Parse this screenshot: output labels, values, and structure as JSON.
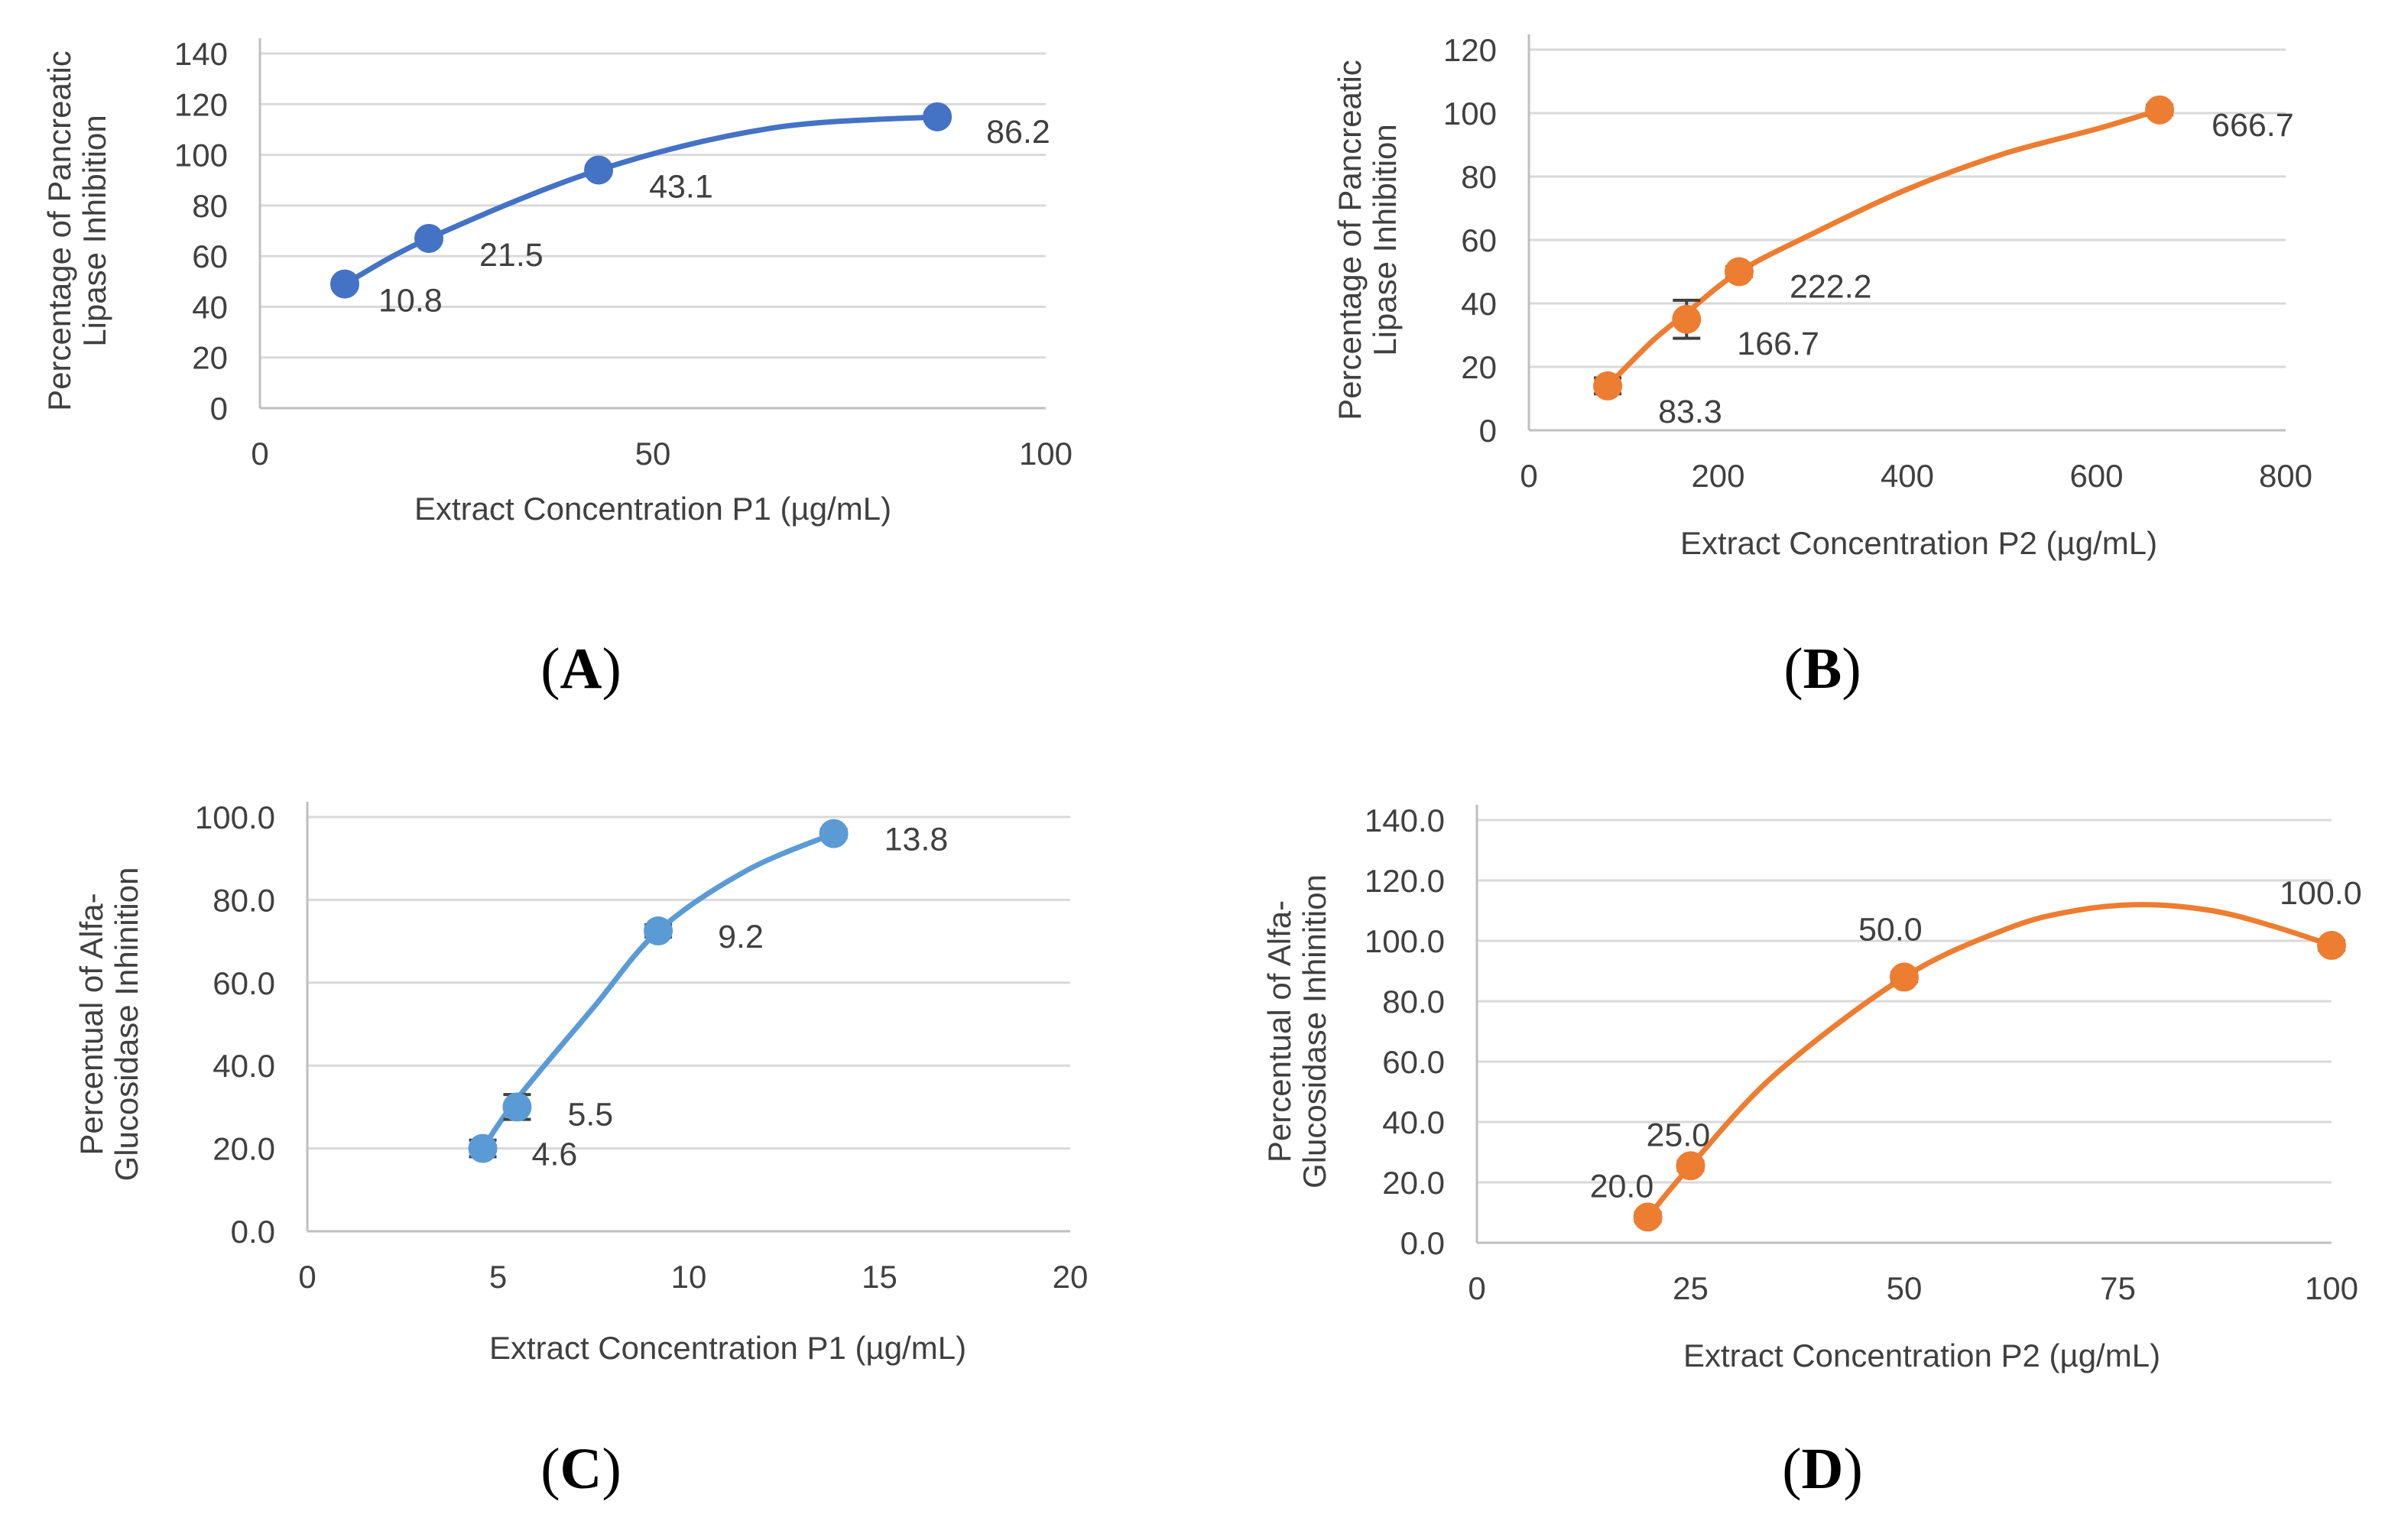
{
  "chart_data": [
    {
      "id": "A",
      "type": "scatter",
      "panel_label": "A",
      "xlabel": "Extract Concentration P1 (µg/mL)",
      "ylabel": [
        "Percentage of Pancreatic",
        "Lipase Inhibition"
      ],
      "xlim": [
        0,
        100
      ],
      "ylim": [
        0,
        140
      ],
      "xticks": [
        "0",
        "50",
        "100"
      ],
      "yticks": [
        "0",
        "20",
        "40",
        "60",
        "80",
        "100",
        "120",
        "140"
      ],
      "grid": true,
      "color": "#4472C4",
      "series": [
        {
          "name": "P1",
          "x": [
            10.8,
            21.5,
            43.1,
            86.2
          ],
          "y": [
            49,
            67,
            94,
            115
          ],
          "labels": [
            "10.8",
            "21.5",
            "43.1",
            "86.2"
          ],
          "error": [
            1.5,
            1.5,
            1.5,
            1.5
          ]
        }
      ],
      "trendline": {
        "type": "polynomial",
        "x": [
          10.8,
          21.5,
          43.1,
          65,
          86.2
        ],
        "y": [
          49,
          67,
          94,
          110.5,
          115
        ]
      }
    },
    {
      "id": "B",
      "type": "scatter",
      "panel_label": "B",
      "xlabel": "Extract Concentration P2 (µg/mL)",
      "ylabel": [
        "Percentage of Pancreatic",
        "Lipase Inhibition"
      ],
      "xlim": [
        0,
        800
      ],
      "ylim": [
        0,
        120
      ],
      "xticks": [
        "0",
        "200",
        "400",
        "600",
        "800"
      ],
      "yticks": [
        "0",
        "20",
        "40",
        "60",
        "80",
        "100",
        "120"
      ],
      "grid": true,
      "color": "#ED7D31",
      "series": [
        {
          "name": "P2",
          "x": [
            83.3,
            166.7,
            222.2,
            666.7
          ],
          "y": [
            14,
            35,
            50,
            101
          ],
          "labels": [
            "83.3",
            "166.7",
            "222.2",
            "666.7"
          ],
          "error": [
            2.5,
            6,
            1.5,
            1.5
          ]
        }
      ],
      "trendline": {
        "type": "logarithmic",
        "x": [
          83.3,
          130,
          166.7,
          222.2,
          300,
          400,
          500,
          600,
          666.7
        ],
        "y": [
          14,
          28,
          37,
          50,
          62,
          76,
          87,
          95,
          101
        ]
      }
    },
    {
      "id": "C",
      "type": "scatter",
      "panel_label": "C",
      "xlabel": "Extract Concentration P1 (µg/mL)",
      "ylabel": [
        "Percentual of Alfa-",
        "Glucosidase Inhinition"
      ],
      "xlim": [
        0,
        20
      ],
      "ylim": [
        0,
        100
      ],
      "xticks": [
        "0",
        "5",
        "10",
        "15",
        "20"
      ],
      "yticks": [
        "0.0",
        "20.0",
        "40.0",
        "60.0",
        "80.0",
        "100.0"
      ],
      "grid": true,
      "color": "#5B9BD5",
      "series": [
        {
          "name": "P1",
          "x": [
            4.6,
            5.5,
            9.2,
            13.8
          ],
          "y": [
            20,
            30,
            72.5,
            96
          ],
          "labels": [
            "4.6",
            "5.5",
            "9.2",
            "13.8"
          ],
          "error": [
            2,
            3,
            1.5,
            1
          ]
        }
      ],
      "trendline": {
        "type": "polynomial",
        "x": [
          4.6,
          5.5,
          7.5,
          9.2,
          11.5,
          13.8
        ],
        "y": [
          20,
          32,
          54,
          72.5,
          87,
          96
        ]
      }
    },
    {
      "id": "D",
      "type": "scatter",
      "panel_label": "D",
      "xlabel": "Extract Concentration P2 (µg/mL)",
      "ylabel": [
        "Percentual of Alfa-",
        "Glucosidase Inhinition"
      ],
      "xlim": [
        0,
        100
      ],
      "ylim": [
        0,
        140
      ],
      "xticks": [
        "0",
        "25",
        "50",
        "75",
        "100"
      ],
      "yticks": [
        "0.0",
        "20.0",
        "40.0",
        "60.0",
        "80.0",
        "100.0",
        "120.0",
        "140.0"
      ],
      "grid": true,
      "color": "#ED7D31",
      "series": [
        {
          "name": "P2",
          "x": [
            20,
            25,
            50,
            100
          ],
          "y": [
            8.5,
            25.5,
            88,
            98.5
          ],
          "labels": [
            "20.0",
            "25.0",
            "50.0",
            "100.0"
          ],
          "error": [
            1.5,
            1.5,
            1.5,
            1.5
          ]
        }
      ],
      "trendline": {
        "type": "polynomial",
        "x": [
          20,
          25,
          35,
          50,
          62,
          70,
          78,
          86,
          93,
          100
        ],
        "y": [
          8.5,
          25.5,
          56,
          88,
          104,
          110,
          112,
          110,
          105,
          98.5
        ]
      }
    }
  ]
}
